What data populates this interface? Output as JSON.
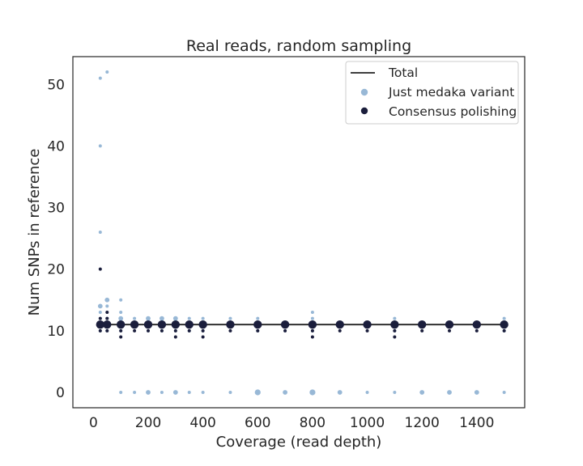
{
  "chart_data": {
    "type": "scatter",
    "title": "Real reads, random sampling",
    "xlabel": "Coverage (read depth)",
    "ylabel": "Num SNPs in reference",
    "xlim": [
      -75,
      1575
    ],
    "ylim": [
      -2.5,
      54.5
    ],
    "xticks": [
      0,
      200,
      400,
      600,
      800,
      1000,
      1200,
      1400
    ],
    "yticks": [
      0,
      10,
      20,
      30,
      40,
      50
    ],
    "grid": false,
    "legend_position": "top-right",
    "colors": {
      "total": "#222222",
      "medaka": "#98b8d6",
      "consensus": "#1b1e3c",
      "axis": "#262626"
    },
    "total_line": {
      "name": "Total",
      "x": [
        25,
        1500
      ],
      "y": [
        11,
        11
      ]
    },
    "series": [
      {
        "name": "Just medaka variant",
        "points": [
          {
            "x": 25,
            "y": 51,
            "size": 1
          },
          {
            "x": 25,
            "y": 40,
            "size": 1
          },
          {
            "x": 25,
            "y": 26,
            "size": 1
          },
          {
            "x": 25,
            "y": 14,
            "size": 2
          },
          {
            "x": 25,
            "y": 13,
            "size": 1
          },
          {
            "x": 25,
            "y": 12,
            "size": 1
          },
          {
            "x": 25,
            "y": 11,
            "size": 2
          },
          {
            "x": 25,
            "y": 10,
            "size": 1
          },
          {
            "x": 50,
            "y": 52,
            "size": 1
          },
          {
            "x": 50,
            "y": 15,
            "size": 2
          },
          {
            "x": 50,
            "y": 14,
            "size": 1
          },
          {
            "x": 50,
            "y": 12,
            "size": 1
          },
          {
            "x": 50,
            "y": 11,
            "size": 2
          },
          {
            "x": 50,
            "y": 10,
            "size": 1
          },
          {
            "x": 100,
            "y": 15,
            "size": 1
          },
          {
            "x": 100,
            "y": 13,
            "size": 1
          },
          {
            "x": 100,
            "y": 12,
            "size": 2
          },
          {
            "x": 100,
            "y": 11,
            "size": 2
          },
          {
            "x": 100,
            "y": 10,
            "size": 1
          },
          {
            "x": 100,
            "y": 0,
            "size": 1
          },
          {
            "x": 150,
            "y": 12,
            "size": 1
          },
          {
            "x": 150,
            "y": 11,
            "size": 2
          },
          {
            "x": 150,
            "y": 0,
            "size": 1
          },
          {
            "x": 200,
            "y": 12,
            "size": 2
          },
          {
            "x": 200,
            "y": 11,
            "size": 2
          },
          {
            "x": 200,
            "y": 10,
            "size": 1
          },
          {
            "x": 200,
            "y": 0,
            "size": 2
          },
          {
            "x": 250,
            "y": 12,
            "size": 2
          },
          {
            "x": 250,
            "y": 11,
            "size": 2
          },
          {
            "x": 250,
            "y": 10,
            "size": 1
          },
          {
            "x": 250,
            "y": 0,
            "size": 1
          },
          {
            "x": 300,
            "y": 12,
            "size": 2
          },
          {
            "x": 300,
            "y": 11,
            "size": 2
          },
          {
            "x": 300,
            "y": 10,
            "size": 1
          },
          {
            "x": 300,
            "y": 0,
            "size": 2
          },
          {
            "x": 350,
            "y": 12,
            "size": 1
          },
          {
            "x": 350,
            "y": 11,
            "size": 2
          },
          {
            "x": 350,
            "y": 10,
            "size": 1
          },
          {
            "x": 350,
            "y": 0,
            "size": 1
          },
          {
            "x": 400,
            "y": 12,
            "size": 1
          },
          {
            "x": 400,
            "y": 11,
            "size": 2
          },
          {
            "x": 400,
            "y": 10,
            "size": 1
          },
          {
            "x": 400,
            "y": 0,
            "size": 1
          },
          {
            "x": 500,
            "y": 12,
            "size": 1
          },
          {
            "x": 500,
            "y": 11,
            "size": 2
          },
          {
            "x": 500,
            "y": 0,
            "size": 1
          },
          {
            "x": 600,
            "y": 12,
            "size": 1
          },
          {
            "x": 600,
            "y": 11,
            "size": 2
          },
          {
            "x": 600,
            "y": 10,
            "size": 1
          },
          {
            "x": 600,
            "y": 0,
            "size": 3
          },
          {
            "x": 700,
            "y": 11,
            "size": 2
          },
          {
            "x": 700,
            "y": 10,
            "size": 1
          },
          {
            "x": 700,
            "y": 0,
            "size": 2
          },
          {
            "x": 800,
            "y": 13,
            "size": 1
          },
          {
            "x": 800,
            "y": 12,
            "size": 1
          },
          {
            "x": 800,
            "y": 11,
            "size": 2
          },
          {
            "x": 800,
            "y": 10,
            "size": 1
          },
          {
            "x": 800,
            "y": 0,
            "size": 3
          },
          {
            "x": 900,
            "y": 11,
            "size": 2
          },
          {
            "x": 900,
            "y": 0,
            "size": 2
          },
          {
            "x": 1000,
            "y": 11,
            "size": 2
          },
          {
            "x": 1000,
            "y": 0,
            "size": 1
          },
          {
            "x": 1100,
            "y": 12,
            "size": 1
          },
          {
            "x": 1100,
            "y": 11,
            "size": 2
          },
          {
            "x": 1100,
            "y": 10,
            "size": 1
          },
          {
            "x": 1100,
            "y": 0,
            "size": 1
          },
          {
            "x": 1200,
            "y": 11,
            "size": 2
          },
          {
            "x": 1200,
            "y": 0,
            "size": 2
          },
          {
            "x": 1300,
            "y": 11,
            "size": 2
          },
          {
            "x": 1300,
            "y": 0,
            "size": 2
          },
          {
            "x": 1400,
            "y": 11,
            "size": 2
          },
          {
            "x": 1400,
            "y": 0,
            "size": 2
          },
          {
            "x": 1500,
            "y": 12,
            "size": 1
          },
          {
            "x": 1500,
            "y": 11,
            "size": 2
          },
          {
            "x": 1500,
            "y": 10,
            "size": 1
          },
          {
            "x": 1500,
            "y": 0,
            "size": 1
          }
        ]
      },
      {
        "name": "Consensus polishing",
        "points": [
          {
            "x": 25,
            "y": 20,
            "size": 1
          },
          {
            "x": 25,
            "y": 12,
            "size": 1
          },
          {
            "x": 25,
            "y": 11,
            "size": 4
          },
          {
            "x": 25,
            "y": 10,
            "size": 1
          },
          {
            "x": 50,
            "y": 13,
            "size": 1
          },
          {
            "x": 50,
            "y": 12,
            "size": 1
          },
          {
            "x": 50,
            "y": 11,
            "size": 4
          },
          {
            "x": 50,
            "y": 10,
            "size": 1
          },
          {
            "x": 100,
            "y": 11,
            "size": 4
          },
          {
            "x": 100,
            "y": 10,
            "size": 1
          },
          {
            "x": 100,
            "y": 9,
            "size": 1
          },
          {
            "x": 150,
            "y": 11,
            "size": 4
          },
          {
            "x": 150,
            "y": 10,
            "size": 1
          },
          {
            "x": 200,
            "y": 11,
            "size": 4
          },
          {
            "x": 200,
            "y": 10,
            "size": 1
          },
          {
            "x": 250,
            "y": 11,
            "size": 4
          },
          {
            "x": 250,
            "y": 10,
            "size": 1
          },
          {
            "x": 300,
            "y": 11,
            "size": 4
          },
          {
            "x": 300,
            "y": 10,
            "size": 1
          },
          {
            "x": 300,
            "y": 9,
            "size": 1
          },
          {
            "x": 350,
            "y": 11,
            "size": 4
          },
          {
            "x": 350,
            "y": 10,
            "size": 1
          },
          {
            "x": 400,
            "y": 11,
            "size": 4
          },
          {
            "x": 400,
            "y": 10,
            "size": 1
          },
          {
            "x": 400,
            "y": 9,
            "size": 1
          },
          {
            "x": 500,
            "y": 11,
            "size": 4
          },
          {
            "x": 500,
            "y": 10,
            "size": 1
          },
          {
            "x": 600,
            "y": 11,
            "size": 4
          },
          {
            "x": 600,
            "y": 10,
            "size": 1
          },
          {
            "x": 700,
            "y": 11,
            "size": 4
          },
          {
            "x": 700,
            "y": 10,
            "size": 1
          },
          {
            "x": 800,
            "y": 11,
            "size": 4
          },
          {
            "x": 800,
            "y": 10,
            "size": 1
          },
          {
            "x": 800,
            "y": 9,
            "size": 1
          },
          {
            "x": 900,
            "y": 11,
            "size": 4
          },
          {
            "x": 900,
            "y": 10,
            "size": 1
          },
          {
            "x": 1000,
            "y": 11,
            "size": 4
          },
          {
            "x": 1000,
            "y": 10,
            "size": 1
          },
          {
            "x": 1100,
            "y": 11,
            "size": 4
          },
          {
            "x": 1100,
            "y": 10,
            "size": 1
          },
          {
            "x": 1100,
            "y": 9,
            "size": 1
          },
          {
            "x": 1200,
            "y": 11,
            "size": 4
          },
          {
            "x": 1200,
            "y": 10,
            "size": 1
          },
          {
            "x": 1300,
            "y": 11,
            "size": 4
          },
          {
            "x": 1300,
            "y": 10,
            "size": 1
          },
          {
            "x": 1400,
            "y": 11,
            "size": 4
          },
          {
            "x": 1400,
            "y": 10,
            "size": 1
          },
          {
            "x": 1500,
            "y": 11,
            "size": 4
          },
          {
            "x": 1500,
            "y": 10,
            "size": 1
          }
        ]
      }
    ],
    "legend": [
      {
        "label": "Total",
        "kind": "line"
      },
      {
        "label": "Just medaka variant",
        "kind": "marker"
      },
      {
        "label": "Consensus polishing",
        "kind": "marker"
      }
    ]
  }
}
